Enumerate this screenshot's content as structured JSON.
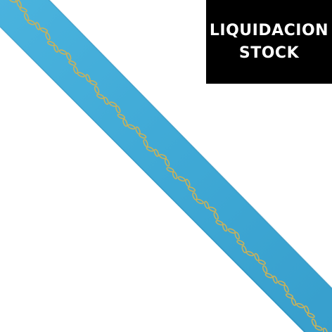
{
  "banner": {
    "line1": "LIQUIDACION",
    "line2": "STOCK"
  },
  "colors": {
    "background": "#ffffff",
    "ribbon": "#3fa9d6",
    "chain": "#c9b15a",
    "banner_bg": "#000000",
    "banner_text": "#ffffff"
  },
  "icons": {
    "product": "gold-chain-on-blue-ribbon"
  }
}
